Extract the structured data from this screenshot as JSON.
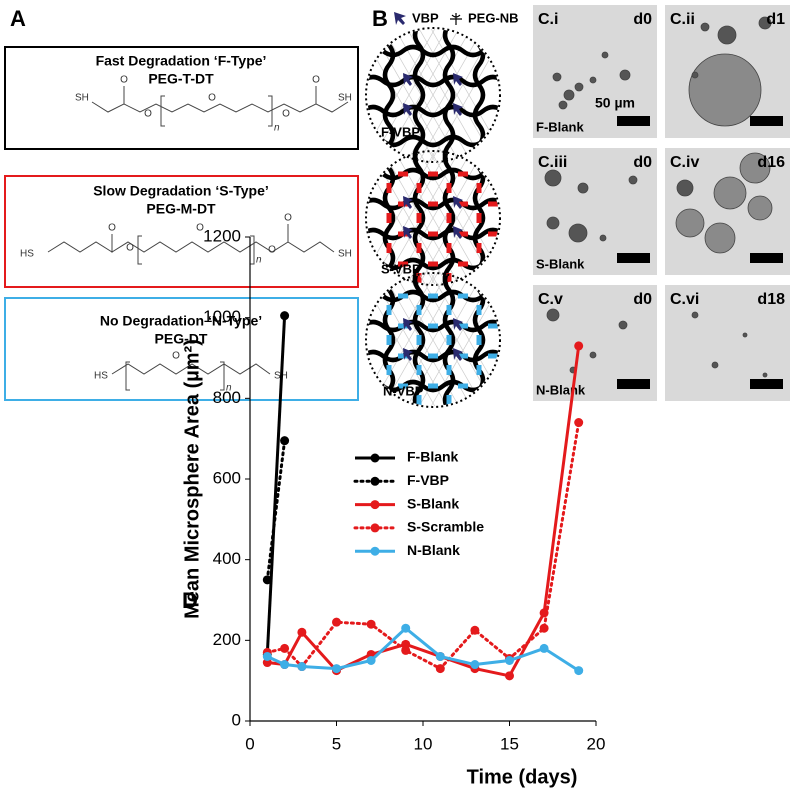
{
  "panel_a": {
    "label": "A",
    "boxes": [
      {
        "title": "Fast Degradation ‘F-Type’",
        "name": "PEG-T-DT",
        "atoms": [
          "SH",
          "O",
          "O",
          "O",
          "O",
          "O",
          "SH"
        ],
        "repeat": "n"
      },
      {
        "title": "Slow Degradation ‘S-Type’",
        "name": "PEG-M-DT",
        "atoms": [
          "HS",
          "O",
          "O",
          "O",
          "O",
          "O",
          "SH"
        ],
        "repeat": "n"
      },
      {
        "title": "No Degradation ‘N-Type’",
        "name": "PEG-DT",
        "atoms": [
          "HS",
          "O",
          "SH"
        ],
        "repeat": "n"
      }
    ]
  },
  "panel_b": {
    "label": "B",
    "legend": [
      "VBP",
      "PEG-NB"
    ],
    "gels": [
      "F-VBP",
      "S-VBP",
      "N-VBP"
    ]
  },
  "panel_c": {
    "images": [
      {
        "id": "C.i",
        "day": "d0",
        "sample": "F-Blank",
        "scale": "50 µm"
      },
      {
        "id": "C.ii",
        "day": "d1"
      },
      {
        "id": "C.iii",
        "day": "d0",
        "sample": "S-Blank"
      },
      {
        "id": "C.iv",
        "day": "d16"
      },
      {
        "id": "C.v",
        "day": "d0",
        "sample": "N-Blank"
      },
      {
        "id": "C.vi",
        "day": "d18"
      }
    ]
  },
  "chart_data": {
    "type": "line",
    "label": "D",
    "x_label": "Time (days)",
    "y_label": "Mean Microsphere Area (µm²)",
    "x": [
      1,
      2,
      3,
      5,
      7,
      9,
      11,
      13,
      15,
      17,
      19
    ],
    "xlim": [
      0,
      20
    ],
    "xticks": [
      0,
      5,
      10,
      15,
      20
    ],
    "ylim": [
      0,
      1200
    ],
    "yticks": [
      0,
      200,
      400,
      600,
      800,
      1000,
      1200
    ],
    "series": [
      {
        "name": "F-Blank",
        "color": "#000000",
        "linestyle": "solid",
        "values": [
          165,
          1005,
          null,
          null,
          null,
          null,
          null,
          null,
          null,
          null,
          null
        ]
      },
      {
        "name": "F-VBP",
        "color": "#000000",
        "linestyle": "dotted",
        "values": [
          350,
          695,
          null,
          null,
          null,
          null,
          null,
          null,
          null,
          null,
          null
        ]
      },
      {
        "name": "S-Blank",
        "color": "#e41a1c",
        "linestyle": "solid",
        "values": [
          145,
          140,
          220,
          125,
          165,
          190,
          160,
          130,
          112,
          268,
          930
        ]
      },
      {
        "name": "S-Scramble",
        "color": "#e41a1c",
        "linestyle": "dotted",
        "values": [
          170,
          180,
          135,
          245,
          240,
          175,
          130,
          225,
          155,
          230,
          740
        ]
      },
      {
        "name": "N-Blank",
        "color": "#3eaee6",
        "linestyle": "solid",
        "values": [
          160,
          140,
          135,
          130,
          150,
          230,
          160,
          140,
          150,
          180,
          125
        ]
      }
    ],
    "legend": "upper-left"
  }
}
